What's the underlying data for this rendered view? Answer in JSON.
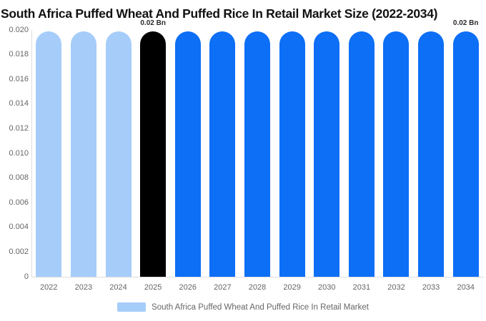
{
  "title": "South Africa Puffed Wheat And Puffed Rice In Retail Market Size (2022-2034)",
  "legend": {
    "label": "South Africa Puffed Wheat And Puffed Rice In Retail Market",
    "swatch_color": "#a6cdfa"
  },
  "colors": {
    "historical_bar": "#a6cdfa",
    "current_year_bar": "#000000",
    "forecast_bar": "#0d6ef6",
    "axis_line": "#dddddd",
    "tick_text": "#666666",
    "title_text": "#111111",
    "annotation_text": "#2b2b2b"
  },
  "chart_data": {
    "type": "bar",
    "title": "South Africa Puffed Wheat And Puffed Rice In Retail Market Size (2022-2034)",
    "categories": [
      "2022",
      "2023",
      "2024",
      "2025",
      "2026",
      "2027",
      "2028",
      "2029",
      "2030",
      "2031",
      "2032",
      "2033",
      "2034"
    ],
    "values": [
      0.0199,
      0.0199,
      0.0199,
      0.0199,
      0.0199,
      0.0199,
      0.0199,
      0.0199,
      0.0199,
      0.0199,
      0.0199,
      0.0199,
      0.0199
    ],
    "bar_colors": [
      "#a6cdfa",
      "#a6cdfa",
      "#a6cdfa",
      "#000000",
      "#0d6ef6",
      "#0d6ef6",
      "#0d6ef6",
      "#0d6ef6",
      "#0d6ef6",
      "#0d6ef6",
      "#0d6ef6",
      "#0d6ef6",
      "#0d6ef6"
    ],
    "annotations": [
      {
        "category": "2025",
        "index": 3,
        "label": "0.02 Bn"
      },
      {
        "category": "2034",
        "index": 12,
        "label": "0.02 Bn"
      }
    ],
    "xlabel": "",
    "ylabel": "",
    "ylim": [
      0,
      0.02
    ],
    "ytick_labels": [
      "0",
      "0.002",
      "0.004",
      "0.006",
      "0.008",
      "0.010",
      "0.012",
      "0.014",
      "0.016",
      "0.018",
      "0.020"
    ],
    "grid": false,
    "legend_position": "bottom",
    "legend_entries": [
      "South Africa Puffed Wheat And Puffed Rice In Retail Market"
    ],
    "units": "Bn"
  }
}
